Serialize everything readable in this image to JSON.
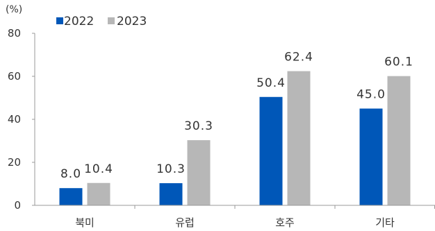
{
  "chart_data": {
    "type": "bar",
    "unit_label": "(%)",
    "categories": [
      "북미",
      "유럽",
      "호주",
      "기타"
    ],
    "series": [
      {
        "name": "2022",
        "values": [
          8.0,
          10.3,
          50.4,
          45.0
        ],
        "labels": [
          "8.0",
          "10.3",
          "50.4",
          "45.0"
        ],
        "color": "#0057b8"
      },
      {
        "name": "2023",
        "values": [
          10.4,
          30.3,
          62.4,
          60.1
        ],
        "labels": [
          "10.4",
          "30.3",
          "62.4",
          "60.1"
        ],
        "color": "#b7b7b7"
      }
    ],
    "yticks": [
      "0",
      "20",
      "40",
      "60",
      "80"
    ],
    "ylim": [
      0,
      80
    ],
    "grid": false,
    "legend_position": "top-left"
  }
}
